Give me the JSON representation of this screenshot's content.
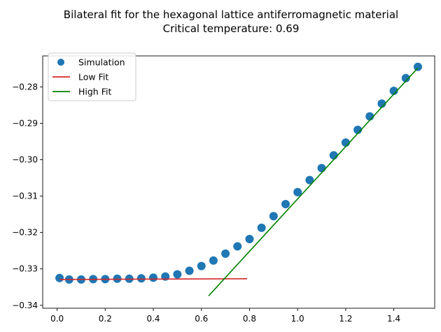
{
  "chart_data": {
    "type": "scatter",
    "title": "Bilateral fit for the hexagonal lattice antiferromagnetic material",
    "subtitle": "Critical temperature: 0.69",
    "xlabel": "",
    "ylabel": "",
    "xlim": [
      -0.06,
      1.57
    ],
    "ylim": [
      -0.3408,
      -0.2715
    ],
    "x_ticks": [
      0.0,
      0.2,
      0.4,
      0.6,
      0.8,
      1.0,
      1.2,
      1.4
    ],
    "x_tick_labels": [
      "0.0",
      "0.2",
      "0.4",
      "0.6",
      "0.8",
      "1.0",
      "1.2",
      "1.4"
    ],
    "y_ticks": [
      -0.34,
      -0.33,
      -0.32,
      -0.31,
      -0.3,
      -0.29,
      -0.28
    ],
    "y_tick_labels": [
      "−0.34",
      "−0.33",
      "−0.32",
      "−0.31",
      "−0.30",
      "−0.29",
      "−0.28"
    ],
    "grid": false,
    "legend_position": "top-left",
    "series": [
      {
        "name": "Simulation",
        "kind": "points",
        "color": "#1f77b4",
        "x": [
          0.01,
          0.05,
          0.1,
          0.15,
          0.2,
          0.25,
          0.3,
          0.35,
          0.4,
          0.45,
          0.5,
          0.55,
          0.6,
          0.65,
          0.7,
          0.75,
          0.8,
          0.85,
          0.9,
          0.95,
          1.0,
          1.05,
          1.1,
          1.15,
          1.2,
          1.25,
          1.3,
          1.35,
          1.4,
          1.45,
          1.5
        ],
        "y": [
          -0.3325,
          -0.3329,
          -0.3329,
          -0.3328,
          -0.3328,
          -0.3327,
          -0.3327,
          -0.3326,
          -0.3324,
          -0.3321,
          -0.3315,
          -0.3305,
          -0.3292,
          -0.3277,
          -0.3258,
          -0.3238,
          -0.3218,
          -0.3187,
          -0.3155,
          -0.3122,
          -0.3089,
          -0.3056,
          -0.3023,
          -0.2988,
          -0.2953,
          -0.2918,
          -0.2881,
          -0.2846,
          -0.2811,
          -0.2776,
          -0.2745
        ]
      },
      {
        "name": "Low Fit",
        "kind": "line",
        "color": "#d62728",
        "x": [
          0.01,
          0.79
        ],
        "y": [
          -0.3329,
          -0.3327
        ]
      },
      {
        "name": "High Fit",
        "kind": "line",
        "color": "#008000",
        "x": [
          0.63,
          1.5
        ],
        "y": [
          -0.3374,
          -0.2748
        ]
      }
    ]
  }
}
